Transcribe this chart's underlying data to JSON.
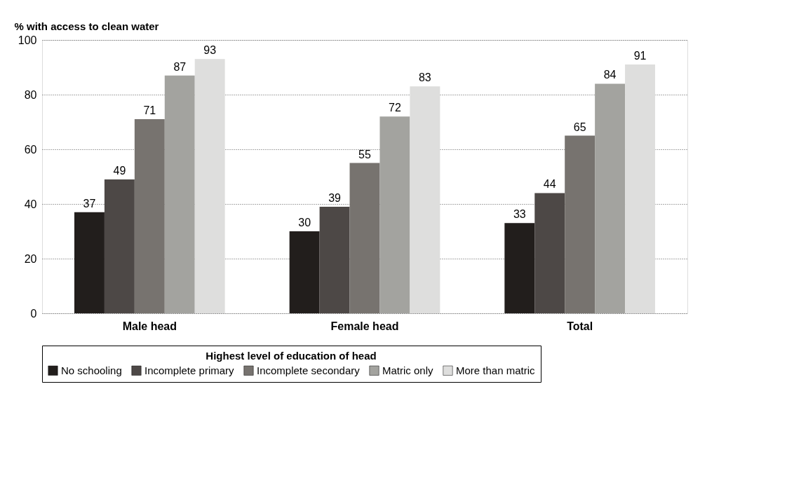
{
  "chart_data": {
    "type": "bar",
    "ylabel": "% with access to clean water",
    "legend_title": "Highest level of education of head",
    "categories": [
      "Male head",
      "Female head",
      "Total"
    ],
    "series": [
      {
        "name": "No schooling",
        "color": "#221e1c",
        "values": [
          37,
          30,
          33
        ]
      },
      {
        "name": "Incomplete primary",
        "color": "#4d4846",
        "values": [
          49,
          39,
          44
        ]
      },
      {
        "name": "Incomplete secondary",
        "color": "#77736f",
        "values": [
          71,
          55,
          65
        ]
      },
      {
        "name": "Matric only",
        "color": "#a3a39f",
        "values": [
          87,
          72,
          84
        ]
      },
      {
        "name": "More than matric",
        "color": "#dededd",
        "values": [
          93,
          83,
          91
        ]
      }
    ],
    "ylim": [
      0,
      100
    ],
    "yticks": [
      0,
      20,
      40,
      60,
      80,
      100
    ],
    "grid": "y",
    "data_labels": true,
    "legend": "bottom"
  }
}
